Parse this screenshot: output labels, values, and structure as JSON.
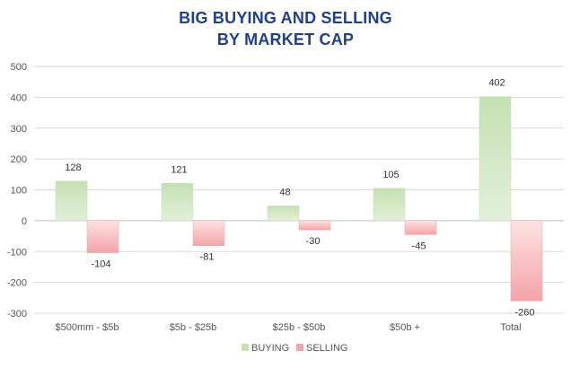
{
  "chart_data": {
    "type": "bar",
    "title": [
      "BIG BUYING AND SELLING",
      "BY MARKET CAP"
    ],
    "categories": [
      "$500mm - $5b",
      "$5b - $25b",
      "$25b - $50b",
      "$50b +",
      "Total"
    ],
    "series": [
      {
        "name": "BUYING",
        "values": [
          128,
          121,
          48,
          105,
          402
        ],
        "color": "#c5e0b3"
      },
      {
        "name": "SELLING",
        "values": [
          -104,
          -81,
          -30,
          -45,
          -260
        ],
        "color": "#f4a3a8"
      }
    ],
    "data_labels": {
      "BUYING": [
        "128",
        "121",
        "48",
        "105",
        "402"
      ],
      "SELLING": [
        "-104",
        "-81",
        "-30",
        "-45",
        "-260"
      ]
    },
    "y_ticks": [
      "500",
      "400",
      "300",
      "200",
      "100",
      "0",
      "-100",
      "-200",
      "-300"
    ],
    "ylim": [
      -300,
      500
    ],
    "grid": true,
    "legend_position": "bottom",
    "colors": {
      "title": "#1f3f8f",
      "gridline": "#d9d9d9",
      "text": "#555555"
    }
  }
}
